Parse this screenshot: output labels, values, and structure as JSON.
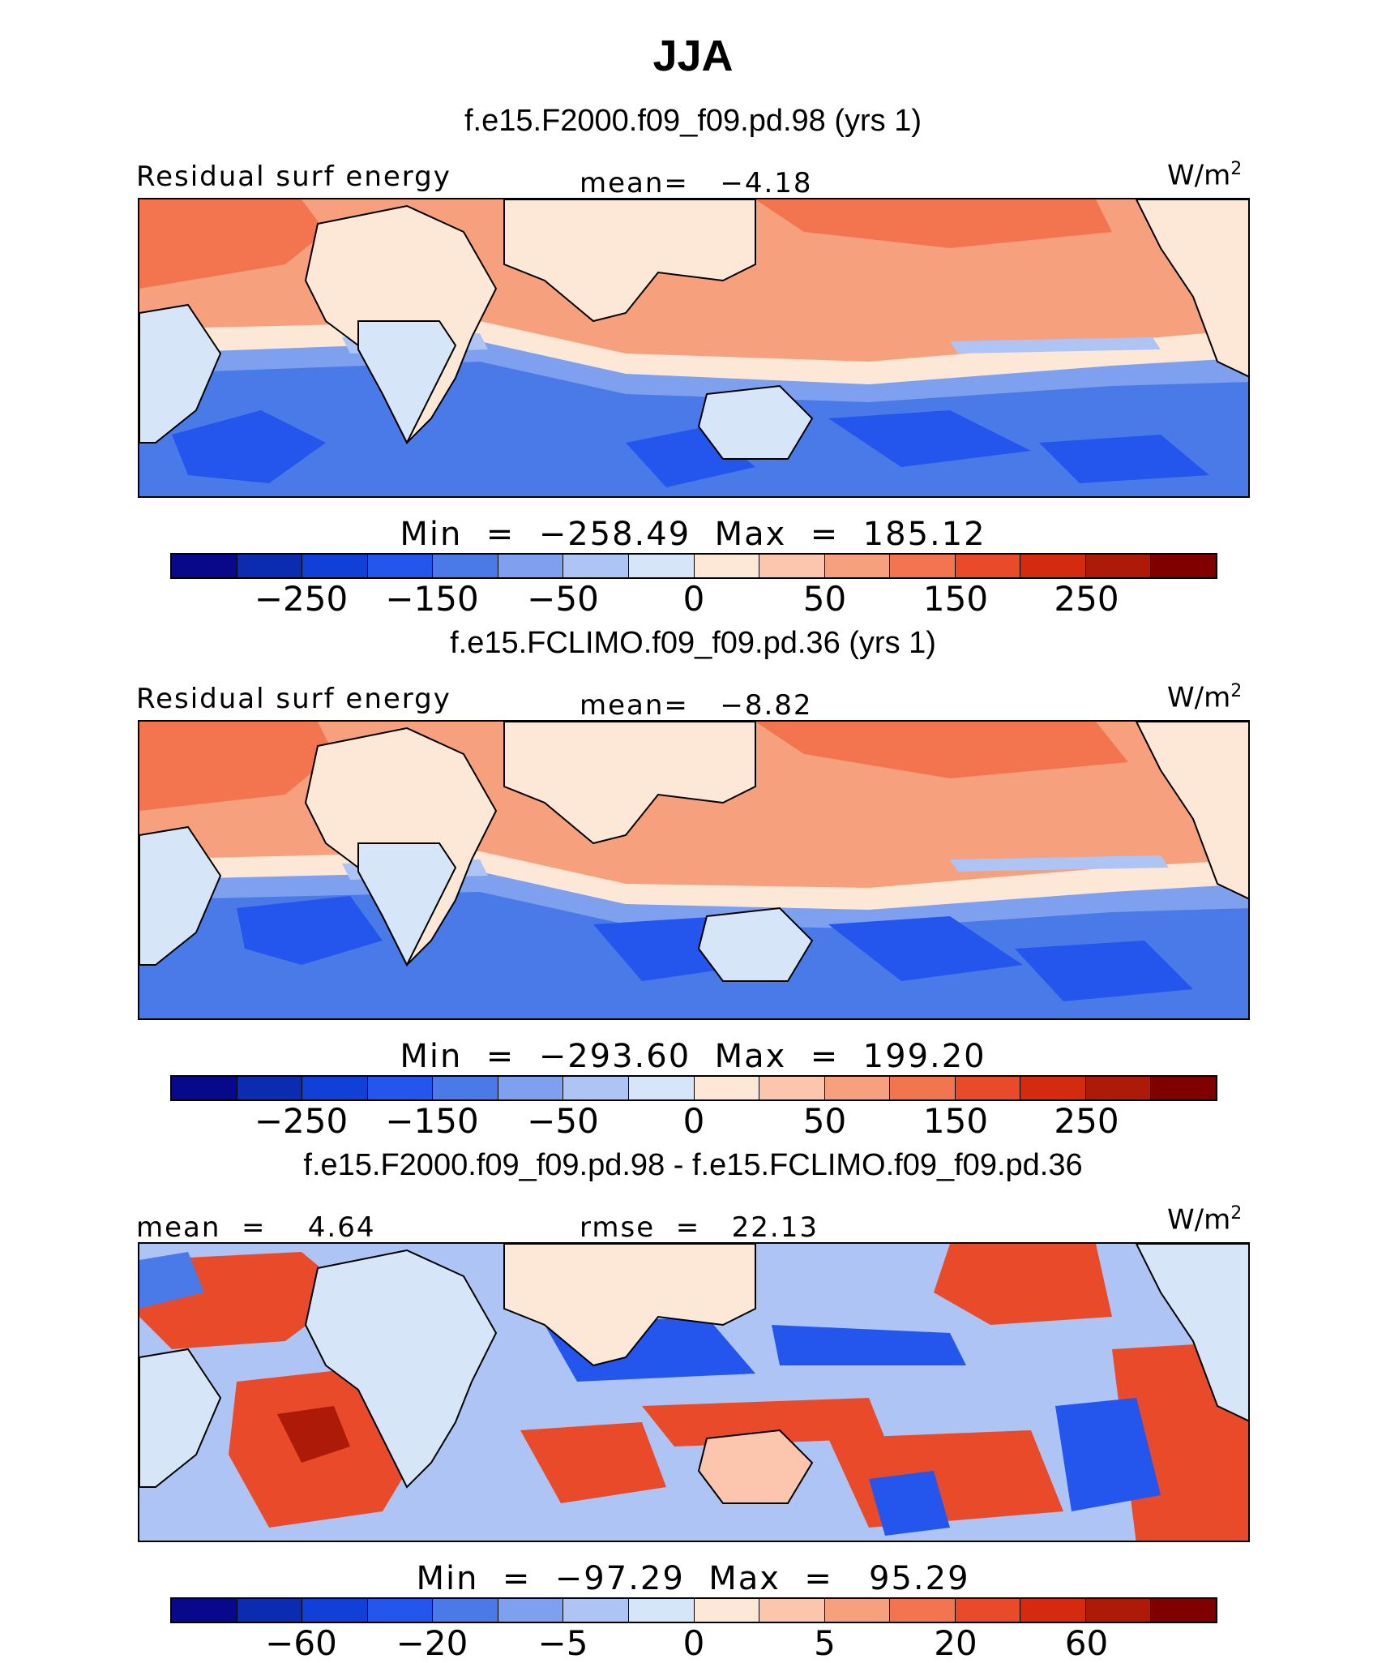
{
  "title": "JJA",
  "colors": [
    "#08088a",
    "#0b2cb0",
    "#1140d8",
    "#2456ee",
    "#4a7ae8",
    "#7fa0ee",
    "#aec4f4",
    "#d6e6f8",
    "#fde8d8",
    "#fbc6ad",
    "#f7a07d",
    "#f27550",
    "#e84a2a",
    "#d42a10",
    "#ae1a08",
    "#800000"
  ],
  "panels": [
    {
      "case_title": "f.e15.F2000.f09_f09.pd.98 (yrs 1)",
      "left_label": "Residual surf energy",
      "center_label": "mean=   −4.18",
      "units": "W/m",
      "units_sup": "2",
      "minmax": "Min  =  −258.49  Max  =  185.12"
    },
    {
      "case_title": "f.e15.FCLIMO.f09_f09.pd.36 (yrs 1)",
      "left_label": "Residual surf energy",
      "center_label": "mean=   −8.82",
      "units": "W/m",
      "units_sup": "2",
      "minmax": "Min  =  −293.60  Max  =  199.20"
    },
    {
      "case_title": "f.e15.F2000.f09_f09.pd.98 - f.e15.FCLIMO.f09_f09.pd.36",
      "left_label": "mean  =    4.64",
      "center_label": "rmse  =   22.13",
      "units": "W/m",
      "units_sup": "2",
      "minmax": "Min  =  −97.29  Max  =   95.29"
    }
  ],
  "chart_data": [
    {
      "type": "heatmap",
      "title": "f.e15.F2000.f09_f09.pd.98 (yrs 1)",
      "variable": "Residual surf energy",
      "units": "W/m2",
      "mean": -4.18,
      "min": -258.49,
      "max": 185.12,
      "colorbar_ticks": [
        "−250",
        "−150",
        "−50",
        "0",
        "50",
        "150",
        "250"
      ],
      "colorbar_levels": 16
    },
    {
      "type": "heatmap",
      "title": "f.e15.FCLIMO.f09_f09.pd.36 (yrs 1)",
      "variable": "Residual surf energy",
      "units": "W/m2",
      "mean": -8.82,
      "min": -293.6,
      "max": 199.2,
      "colorbar_ticks": [
        "−250",
        "−150",
        "−50",
        "0",
        "50",
        "150",
        "250"
      ],
      "colorbar_levels": 16
    },
    {
      "type": "heatmap",
      "title": "f.e15.F2000.f09_f09.pd.98 - f.e15.FCLIMO.f09_f09.pd.36",
      "units": "W/m2",
      "mean": 4.64,
      "rmse": 22.13,
      "min": -97.29,
      "max": 95.29,
      "colorbar_ticks": [
        "−60",
        "−20",
        "−5",
        "0",
        "5",
        "20",
        "60"
      ],
      "colorbar_levels": 16
    }
  ]
}
